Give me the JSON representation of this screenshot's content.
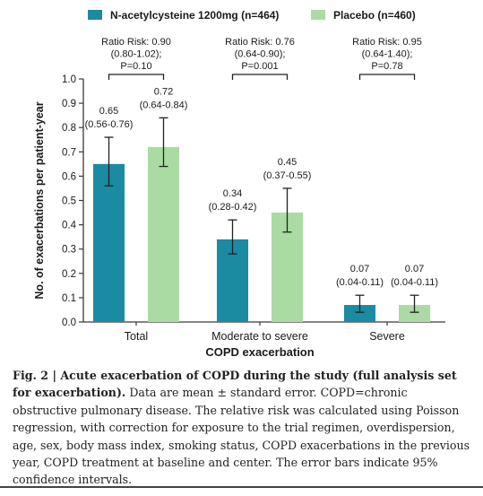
{
  "chart_data": {
    "type": "bar",
    "categories": [
      "Total",
      "Moderate to severe",
      "Severe"
    ],
    "series": [
      {
        "name": "N-acetylcysteine 1200mg (n=464)",
        "color": "#1b8aa3",
        "values": [
          0.65,
          0.34,
          0.07
        ],
        "err_low": [
          0.56,
          0.28,
          0.04
        ],
        "err_high": [
          0.76,
          0.42,
          0.11
        ],
        "labels": [
          "0.65",
          "0.34",
          "0.07"
        ],
        "ci_labels": [
          "(0.56-0.76)",
          "(0.28-0.42)",
          "(0.04-0.11)"
        ]
      },
      {
        "name": "Placebo (n=460)",
        "color": "#a9dba2",
        "values": [
          0.72,
          0.45,
          0.07
        ],
        "err_low": [
          0.64,
          0.37,
          0.04
        ],
        "err_high": [
          0.84,
          0.55,
          0.11
        ],
        "labels": [
          "0.72",
          "0.45",
          "0.07"
        ],
        "ci_labels": [
          "(0.64-0.84)",
          "(0.37-0.55)",
          "(0.04-0.11)"
        ]
      }
    ],
    "ratio_risk": [
      [
        "Ratio Risk: 0.90",
        "(0.80-1.02);",
        "P=0.10"
      ],
      [
        "Ratio Risk: 0.76",
        "(0.64-0.90);",
        "P=0.001"
      ],
      [
        "Ratio Risk: 0.95",
        "(0.64-1.40);",
        "P=0.78"
      ]
    ],
    "xlabel": "COPD exacerbation",
    "ylabel": "No. of exacerbations per patient-year",
    "ylim": [
      0,
      1.0
    ],
    "yticks": [
      0,
      0.1,
      0.2,
      0.3,
      0.4,
      0.5,
      0.6,
      0.7,
      0.8,
      0.9,
      1.0
    ],
    "ytick_labels": [
      "0.0",
      "0.1",
      "0.2",
      "0.3",
      "0.4",
      "0.5",
      "0.6",
      "0.7",
      "0.8",
      "0.9",
      "1.0"
    ],
    "legend_position": "top",
    "grid": false
  },
  "caption": {
    "label": "Fig. 2 | Acute exacerbation of COPD during the study (full analysis set for exacerbation).",
    "text": " Data are mean ± standard error. COPD=chronic obstructive pulmonary disease. The relative risk was calculated using Poisson regression, with correction for exposure to the trial regimen, overdispersion, age, sex, body mass index, smoking status, COPD exacerbations in the previous year, COPD treatment at baseline and center. The error bars indicate 95% confidence intervals."
  }
}
